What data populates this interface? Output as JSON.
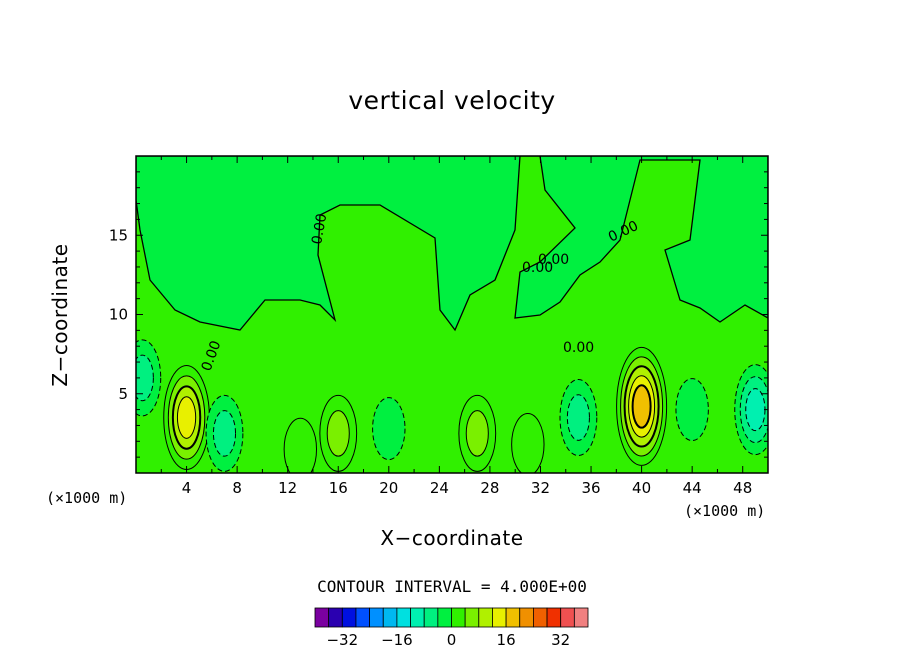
{
  "chart_data": {
    "type": "heatmap",
    "title": "vertical velocity",
    "xlabel": "X−coordinate",
    "ylabel": "Z−coordinate",
    "x_unit_left": "(×1000 m)",
    "x_unit_right": "(×1000 m)",
    "xlim": [
      0,
      50
    ],
    "ylim": [
      0,
      20
    ],
    "x_ticks": [
      4,
      8,
      12,
      16,
      20,
      24,
      28,
      32,
      36,
      40,
      44,
      48
    ],
    "y_ticks": [
      5,
      10,
      15
    ],
    "contour_interval_label": "CONTOUR INTERVAL = 4.000E+00",
    "contour_interval": 4,
    "contour_labels": [
      "0.00",
      "0.00",
      "0.00",
      "0.00",
      "0.00",
      "0.00"
    ],
    "colorbar": {
      "levels": [
        -40,
        -36,
        -32,
        -28,
        -24,
        -20,
        -16,
        -12,
        -8,
        -4,
        0,
        4,
        8,
        12,
        16,
        20,
        24,
        28,
        32,
        36,
        40
      ],
      "colors": [
        "#7a00a0",
        "#2a00b0",
        "#0010e0",
        "#0050ff",
        "#0090ff",
        "#00b8f0",
        "#00e0e0",
        "#00f0b0",
        "#00f080",
        "#00f040",
        "#30f000",
        "#7af000",
        "#b0f000",
        "#e8f000",
        "#f0c000",
        "#f09000",
        "#f06000",
        "#f03000",
        "#f05050",
        "#f08080"
      ],
      "tick_labels": [
        "−32",
        "−16",
        "0",
        "16",
        "32"
      ],
      "tick_values": [
        -32,
        -16,
        0,
        16,
        32
      ]
    },
    "features": [
      {
        "kind": "updraft",
        "x": 4,
        "z": 3.5,
        "peak": 16
      },
      {
        "kind": "downdraft",
        "x": 7,
        "z": 2.5,
        "peak": -8
      },
      {
        "kind": "updraft",
        "x": 13,
        "z": 1.5,
        "peak": 4
      },
      {
        "kind": "updraft",
        "x": 16,
        "z": 2.5,
        "peak": 8
      },
      {
        "kind": "downdraft",
        "x": 20,
        "z": 2.8,
        "peak": -4
      },
      {
        "kind": "updraft",
        "x": 27,
        "z": 2.5,
        "peak": 8
      },
      {
        "kind": "updraft",
        "x": 31,
        "z": 1.8,
        "peak": 4
      },
      {
        "kind": "downdraft",
        "x": 35,
        "z": 3.5,
        "peak": -8
      },
      {
        "kind": "updraft",
        "x": 40,
        "z": 4.2,
        "peak": 20
      },
      {
        "kind": "downdraft",
        "x": 44,
        "z": 4,
        "peak": -4
      },
      {
        "kind": "downdraft",
        "x": 49,
        "z": 4,
        "peak": -12
      },
      {
        "kind": "downdraft",
        "x": 0.5,
        "z": 6,
        "peak": -8
      }
    ]
  }
}
